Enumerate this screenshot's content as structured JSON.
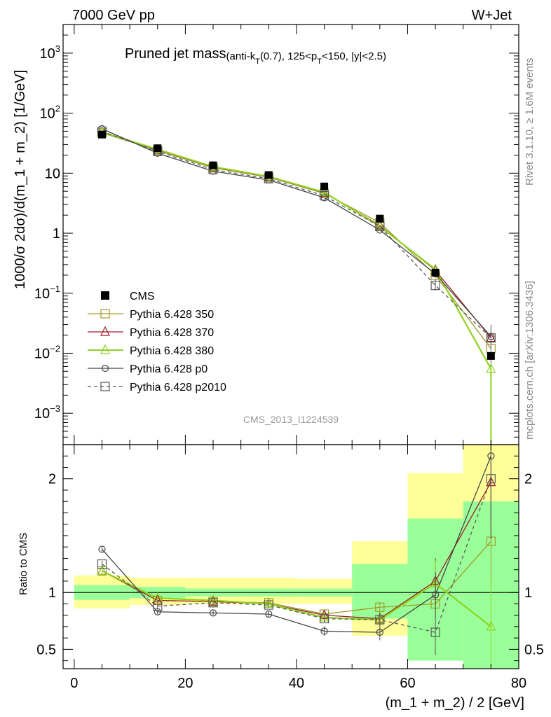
{
  "header": {
    "left": "7000 GeV pp",
    "right": "W+Jet"
  },
  "side_text": {
    "rivet": "Rivet 3.1.10, ≥ 1.6M events",
    "mcplots": "mcplots.cern.ch [arXiv:1306.3436]"
  },
  "colors": {
    "cms": "#000000",
    "p350": "#a09a28",
    "p370": "#9b1c26",
    "p380": "#8ed420",
    "p0": "#454545",
    "p2010": "#5a5a5a",
    "band_outer": "#ffff99",
    "band_inner": "#99ff99"
  },
  "chart_data": {
    "type": "line",
    "title": "Pruned jet mass",
    "subtitle": {
      "prefix": "(anti-k",
      "sub1": "T",
      "mid": "(0.7), 125<p",
      "sub2": "T",
      "suffix": "<150, |y|<2.5)"
    },
    "analysis": "CMS_2013_I1224539",
    "xlabel": "(m_1 + m_2) / 2 [GeV]",
    "ylabel": "1000/σ 2dσ)/d(m_1 + m_2) [1/GeV]",
    "ratio_ylabel": "Ratio to CMS",
    "xlim": [
      -2,
      80
    ],
    "ylim": [
      0.0003,
      3000
    ],
    "ratio_ylim": [
      0.33,
      2.3
    ],
    "yscale": "log",
    "x_ticks": [
      0,
      20,
      40,
      60,
      80
    ],
    "y_tick_labels": [
      {
        "v": 1000,
        "base": "10",
        "exp": "3"
      },
      {
        "v": 100,
        "base": "10",
        "exp": "2"
      },
      {
        "v": 10,
        "base": "10",
        "exp": ""
      },
      {
        "v": 1,
        "base": "1",
        "exp": ""
      },
      {
        "v": 0.1,
        "base": "10",
        "exp": "−1"
      },
      {
        "v": 0.01,
        "base": "10",
        "exp": "−2"
      },
      {
        "v": 0.001,
        "base": "10",
        "exp": "−3"
      }
    ],
    "ratio_ticks": [
      {
        "v": 0.5,
        "label": "0.5"
      },
      {
        "v": 1,
        "label": "1"
      },
      {
        "v": 2,
        "label": "2"
      }
    ],
    "bins": [
      [
        0,
        10
      ],
      [
        10,
        20
      ],
      [
        20,
        30
      ],
      [
        30,
        40
      ],
      [
        40,
        50
      ],
      [
        50,
        60
      ],
      [
        60,
        70
      ],
      [
        70,
        80
      ]
    ],
    "x": [
      5,
      15,
      25,
      35,
      45,
      55,
      65,
      75
    ],
    "data": {
      "name": "CMS",
      "values": [
        44,
        26,
        13.5,
        9.3,
        6.0,
        1.75,
        0.22,
        0.009
      ],
      "ratio_band_inner": [
        [
          0.935,
          1.065
        ],
        [
          0.95,
          1.05
        ],
        [
          0.965,
          1.035
        ],
        [
          0.965,
          1.035
        ],
        [
          0.965,
          1.035
        ],
        [
          0.77,
          1.25
        ],
        [
          0.4,
          1.65
        ],
        [
          0.33,
          1.8
        ]
      ],
      "ratio_band_outer": [
        [
          0.86,
          1.15
        ],
        [
          0.89,
          1.13
        ],
        [
          0.9,
          1.13
        ],
        [
          0.9,
          1.13
        ],
        [
          0.9,
          1.12
        ],
        [
          0.62,
          1.45
        ],
        [
          0.45,
          2.05
        ],
        [
          0.33,
          2.3
        ]
      ]
    },
    "series": [
      {
        "name": "Pythia 6.428 350",
        "marker": "square-open",
        "dashed": false,
        "values": [
          47,
          24,
          12.3,
          8.6,
          4.6,
          1.5,
          0.2,
          0.012
        ],
        "ratio": [
          1.19,
          0.93,
          0.92,
          0.91,
          0.81,
          0.87,
          0.9,
          1.45
        ],
        "ratio_err": [
          0.03,
          0.02,
          0.02,
          0.02,
          0.03,
          0.05,
          0.15,
          0.4
        ]
      },
      {
        "name": "Pythia 6.428 370",
        "marker": "triangle-open",
        "dashed": false,
        "values": [
          47.5,
          24.5,
          12.5,
          8.6,
          4.7,
          1.35,
          0.24,
          0.018
        ],
        "ratio": [
          1.19,
          0.93,
          0.92,
          0.9,
          0.8,
          0.77,
          1.1,
          1.97
        ],
        "ratio_err": [
          0.03,
          0.02,
          0.02,
          0.02,
          0.03,
          0.05,
          0.2,
          0.5
        ]
      },
      {
        "name": "Pythia 6.428 380",
        "marker": "triangle-open",
        "dashed": false,
        "values": [
          48,
          25,
          12.8,
          8.8,
          4.8,
          1.3,
          0.25,
          0.0055
        ],
        "ratio": [
          1.19,
          0.95,
          0.93,
          0.9,
          0.78,
          0.76,
          1.08,
          0.7
        ],
        "ratio_err": [
          0.03,
          0.02,
          0.02,
          0.02,
          0.03,
          0.05,
          0.2,
          0.4
        ]
      },
      {
        "name": "Pythia 6.428 p0",
        "marker": "circle-open",
        "dashed": false,
        "values": [
          55,
          21.5,
          10.8,
          7.7,
          3.9,
          1.13,
          0.21,
          0.019
        ],
        "ratio": [
          1.38,
          0.83,
          0.82,
          0.81,
          0.66,
          0.65,
          0.98,
          2.2
        ],
        "ratio_err": [
          0.03,
          0.02,
          0.02,
          0.03,
          0.04,
          0.07,
          0.2,
          0.6
        ]
      },
      {
        "name": "Pythia 6.428 p2010",
        "marker": "square-open",
        "dashed": true,
        "values": [
          50,
          23,
          11.5,
          8.1,
          4.2,
          1.3,
          0.135,
          0.018
        ],
        "ratio": [
          1.25,
          0.88,
          0.91,
          0.89,
          0.77,
          0.76,
          0.65,
          2.0
        ],
        "ratio_err": [
          0.03,
          0.02,
          0.02,
          0.02,
          0.03,
          0.05,
          0.2,
          0.5
        ]
      }
    ]
  }
}
